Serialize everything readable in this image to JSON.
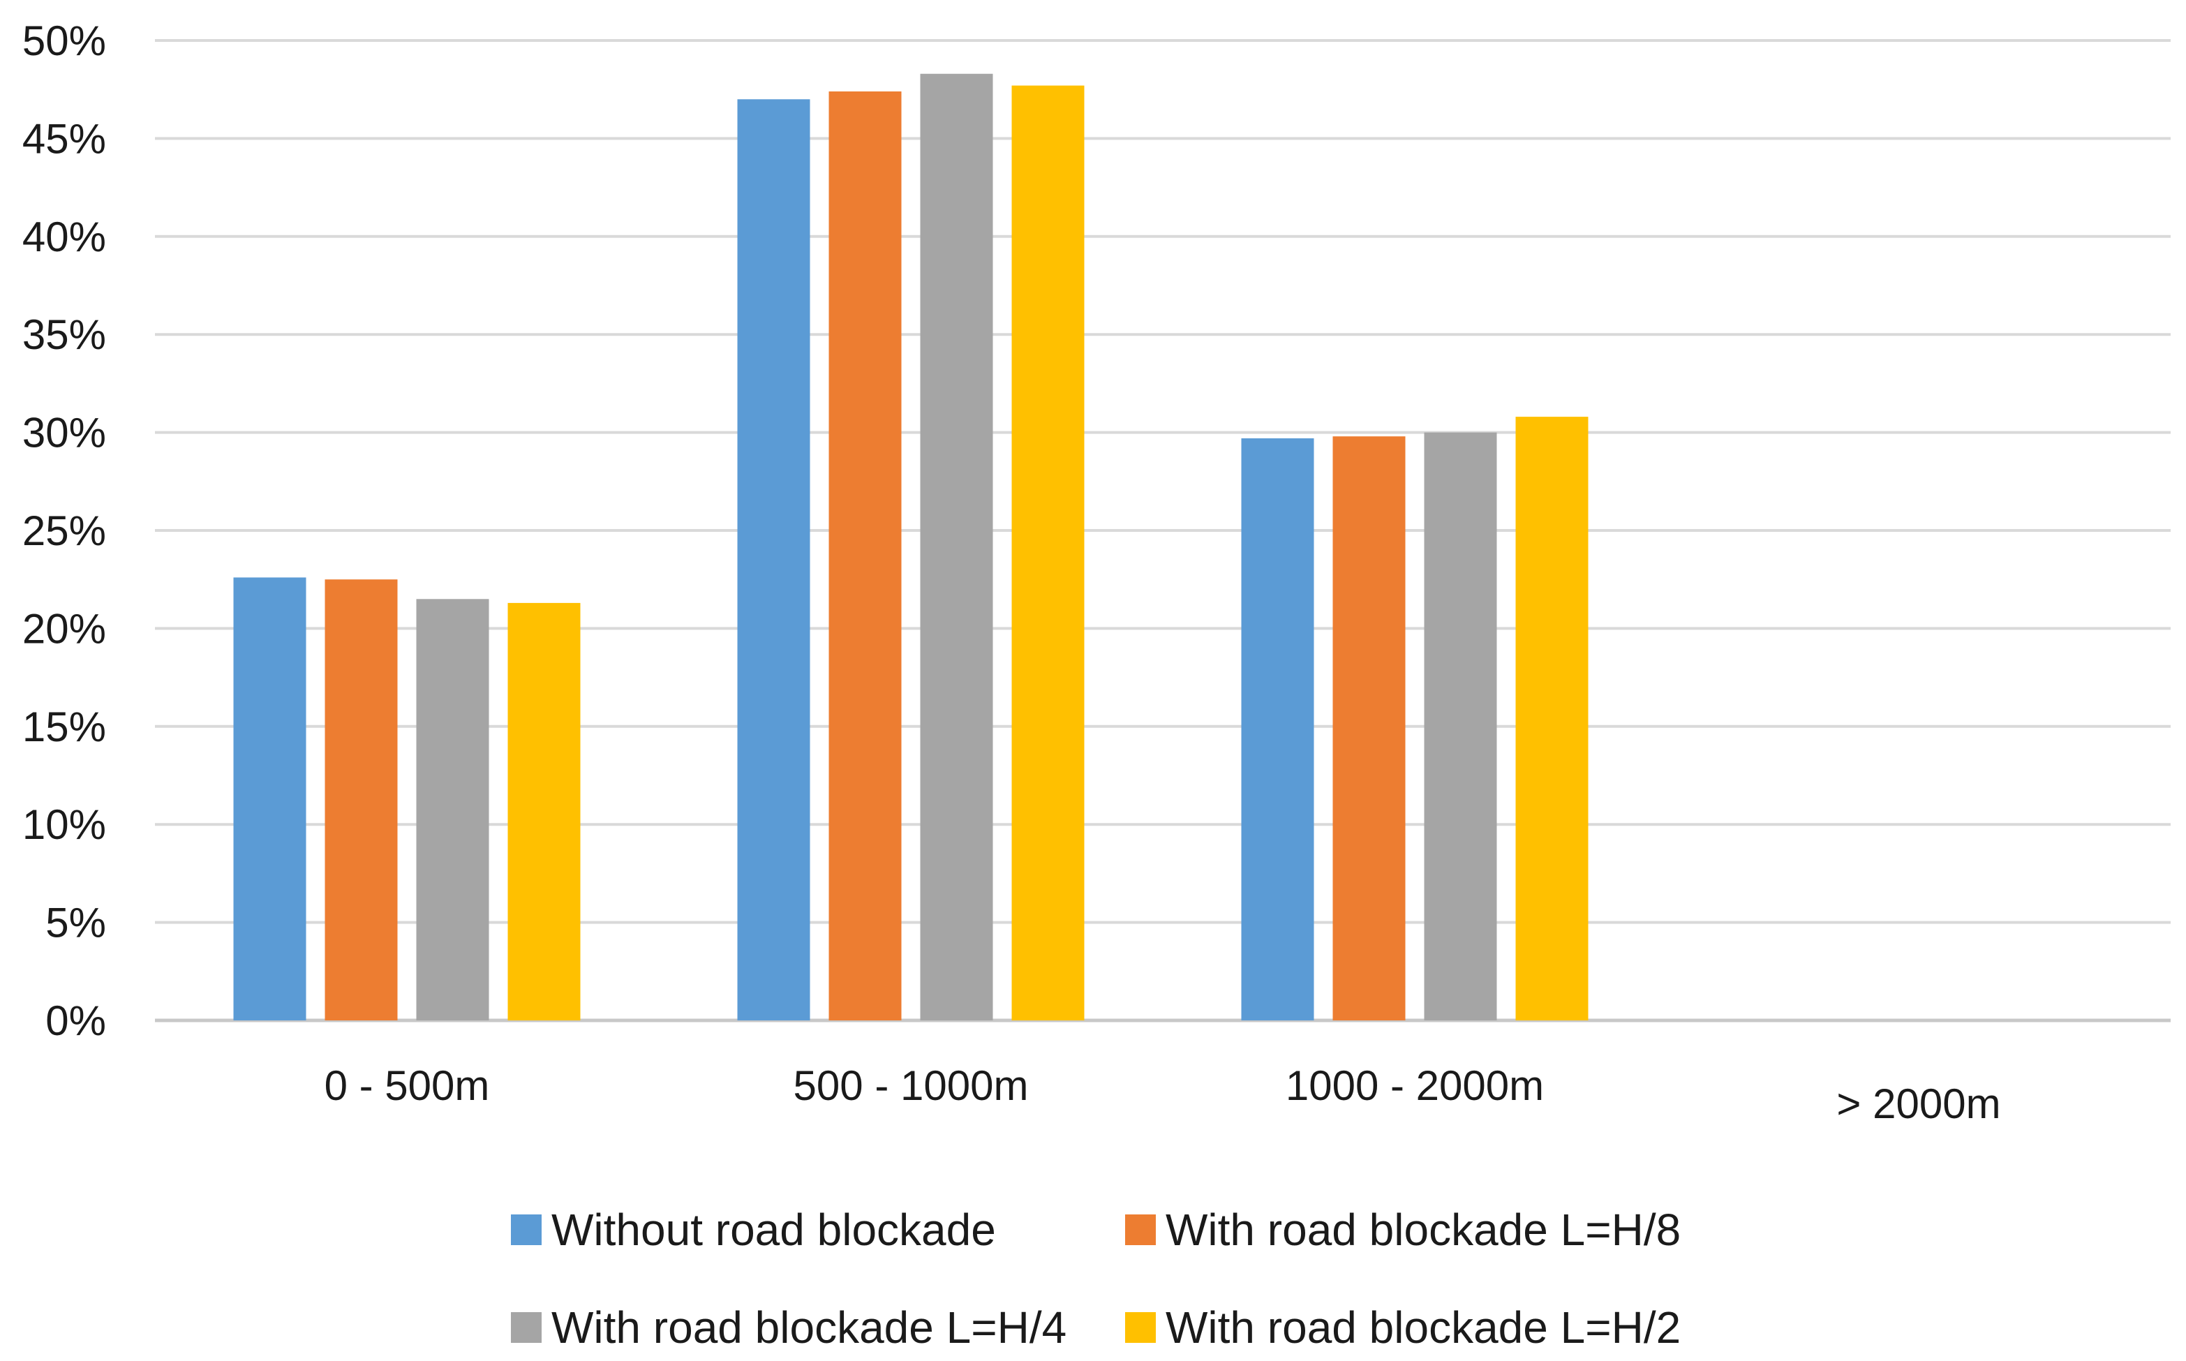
{
  "chart_data": {
    "type": "bar",
    "categories": [
      "0 - 500m",
      "500 - 1000m",
      "1000 - 2000m",
      "> 2000m"
    ],
    "series": [
      {
        "name": "Without road blockade",
        "color": "#5B9BD5",
        "values": [
          22.6,
          47.0,
          29.7,
          0
        ]
      },
      {
        "name": "With road blockade L=H/8",
        "color": "#ED7D31",
        "values": [
          22.5,
          47.4,
          29.8,
          0
        ]
      },
      {
        "name": "With road blockade L=H/4",
        "color": "#A5A5A5",
        "values": [
          21.5,
          48.3,
          30.0,
          0
        ]
      },
      {
        "name": "With road blockade L=H/2",
        "color": "#FFC000",
        "values": [
          21.3,
          47.7,
          30.8,
          0
        ]
      }
    ],
    "yticks": [
      "0%",
      "5%",
      "10%",
      "15%",
      "20%",
      "25%",
      "30%",
      "35%",
      "40%",
      "45%",
      "50%"
    ],
    "ylim": [
      0,
      50
    ],
    "grid": true,
    "legend_position": "bottom",
    "title": "",
    "xlabel": "",
    "ylabel": ""
  }
}
